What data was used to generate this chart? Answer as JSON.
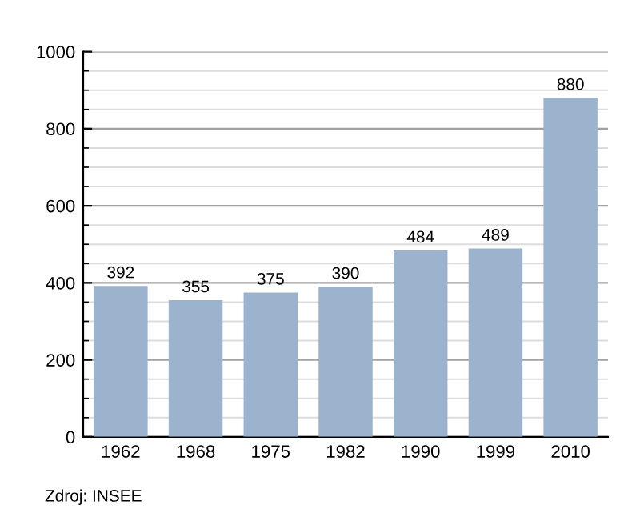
{
  "chart_data": {
    "type": "bar",
    "categories": [
      "1962",
      "1968",
      "1975",
      "1982",
      "1990",
      "1999",
      "2010"
    ],
    "values": [
      392,
      355,
      375,
      390,
      484,
      489,
      880
    ],
    "color": "#9bb3cc",
    "ylim": [
      0,
      1000
    ],
    "yticks": [
      0,
      {
        "value": 50,
        "label": null
      },
      {
        "value": 100,
        "label": null
      },
      {
        "value": 150,
        "label": null
      },
      200,
      {
        "value": 250,
        "label": null
      },
      {
        "value": 300,
        "label": null
      },
      {
        "value": 350,
        "label": null
      },
      400,
      {
        "value": 450,
        "label": null
      },
      {
        "value": 500,
        "label": null
      },
      {
        "value": 550,
        "label": null
      },
      600,
      {
        "value": 650,
        "label": null
      },
      {
        "value": 700,
        "label": null
      },
      {
        "value": 750,
        "label": null
      },
      800,
      {
        "value": 850,
        "label": null
      },
      {
        "value": 900,
        "label": null
      },
      {
        "value": 950,
        "label": null
      },
      1000
    ],
    "grid": "y",
    "data_labels": true,
    "annotations": [
      "Zdroj: INSEE"
    ]
  }
}
